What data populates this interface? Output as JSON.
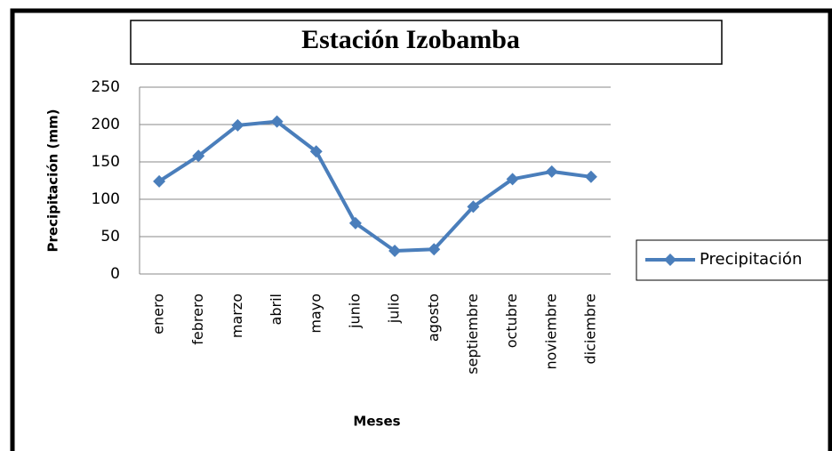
{
  "chart_data": {
    "type": "line",
    "title": "Estación Izobamba",
    "x_label": "Meses",
    "y_label": "Precipitación (mm)",
    "categories": [
      "enero",
      "febrero",
      "marzo",
      "abril",
      "mayo",
      "junio",
      "julio",
      "agosto",
      "septiembre",
      "octubre",
      "noviembre",
      "diciembre"
    ],
    "series": [
      {
        "name": "Precipitación",
        "color": "#4a7ebb",
        "values": [
          124,
          158,
          199,
          204,
          164,
          68,
          31,
          33,
          90,
          127,
          137,
          130
        ]
      }
    ],
    "ylim": [
      0,
      250
    ],
    "yticks": [
      0,
      50,
      100,
      150,
      200,
      250
    ],
    "grid": true,
    "legend": "right"
  }
}
